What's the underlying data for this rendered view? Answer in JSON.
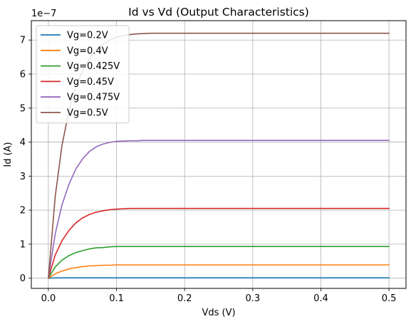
{
  "chart_data": {
    "type": "line",
    "title": "Id vs Vd (Output Characteristics)",
    "xlabel": "Vds (V)",
    "ylabel": "Id (A)",
    "y_scale_label": "1e−7",
    "xlim": [
      -0.025,
      0.525
    ],
    "ylim": [
      -0.3,
      7.57
    ],
    "x_ticks": [
      0.0,
      0.1,
      0.2,
      0.3,
      0.4,
      0.5
    ],
    "x_tick_labels": [
      "0.0",
      "0.1",
      "0.2",
      "0.3",
      "0.4",
      "0.5"
    ],
    "y_ticks": [
      0,
      1,
      2,
      3,
      4,
      5,
      6,
      7
    ],
    "y_tick_labels": [
      "0",
      "1",
      "2",
      "3",
      "4",
      "5",
      "6",
      "7"
    ],
    "grid": true,
    "legend_position": "top-left",
    "x": [
      0.0,
      0.01,
      0.02,
      0.03,
      0.04,
      0.05,
      0.06,
      0.07,
      0.08,
      0.09,
      0.1,
      0.11,
      0.12,
      0.13,
      0.14,
      0.15,
      0.16,
      0.18,
      0.2,
      0.25,
      0.3,
      0.35,
      0.4,
      0.45,
      0.5
    ],
    "series": [
      {
        "name": "Vg=0.2V",
        "color": "#1f77b4",
        "values": [
          0,
          0.01,
          0.01,
          0.01,
          0.01,
          0.01,
          0.01,
          0.01,
          0.01,
          0.01,
          0.01,
          0.01,
          0.01,
          0.01,
          0.01,
          0.01,
          0.01,
          0.01,
          0.01,
          0.01,
          0.01,
          0.01,
          0.01,
          0.01,
          0.01
        ]
      },
      {
        "name": "Vg=0.4V",
        "color": "#ff7f0e",
        "values": [
          0,
          0.13,
          0.21,
          0.27,
          0.31,
          0.34,
          0.36,
          0.37,
          0.38,
          0.38,
          0.39,
          0.39,
          0.39,
          0.39,
          0.39,
          0.39,
          0.39,
          0.39,
          0.39,
          0.39,
          0.39,
          0.39,
          0.39,
          0.39,
          0.39
        ]
      },
      {
        "name": "Vg=0.425V",
        "color": "#2ca02c",
        "values": [
          0,
          0.33,
          0.53,
          0.66,
          0.75,
          0.81,
          0.86,
          0.89,
          0.9,
          0.92,
          0.93,
          0.93,
          0.93,
          0.93,
          0.93,
          0.93,
          0.93,
          0.93,
          0.93,
          0.93,
          0.93,
          0.93,
          0.93,
          0.93,
          0.93
        ]
      },
      {
        "name": "Vg=0.45V",
        "color": "#d62728",
        "values": [
          0,
          0.68,
          1.1,
          1.4,
          1.62,
          1.77,
          1.87,
          1.94,
          1.98,
          2.01,
          2.03,
          2.04,
          2.05,
          2.05,
          2.05,
          2.05,
          2.05,
          2.05,
          2.05,
          2.05,
          2.05,
          2.05,
          2.05,
          2.05,
          2.05
        ]
      },
      {
        "name": "Vg=0.475V",
        "color": "#9467bd",
        "values": [
          0,
          1.3,
          2.15,
          2.75,
          3.2,
          3.5,
          3.72,
          3.86,
          3.94,
          3.99,
          4.02,
          4.03,
          4.04,
          4.04,
          4.05,
          4.05,
          4.05,
          4.05,
          4.05,
          4.05,
          4.05,
          4.05,
          4.05,
          4.05,
          4.05
        ]
      },
      {
        "name": "Vg=0.5V",
        "color": "#8c564b",
        "values": [
          0,
          2.4,
          3.9,
          4.9,
          5.6,
          6.1,
          6.45,
          6.7,
          6.88,
          7.0,
          7.08,
          7.13,
          7.16,
          7.18,
          7.19,
          7.2,
          7.2,
          7.2,
          7.2,
          7.2,
          7.2,
          7.2,
          7.2,
          7.2,
          7.2
        ]
      }
    ]
  }
}
